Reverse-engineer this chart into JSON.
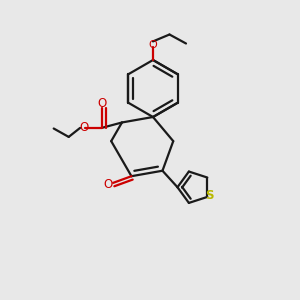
{
  "background_color": "#e8e8e8",
  "bond_color": "#1a1a1a",
  "oxygen_color": "#cc0000",
  "sulfur_color": "#b8b800",
  "line_width": 1.6,
  "figsize": [
    3.0,
    3.0
  ],
  "dpi": 100,
  "xlim": [
    0,
    10
  ],
  "ylim": [
    0,
    10
  ]
}
